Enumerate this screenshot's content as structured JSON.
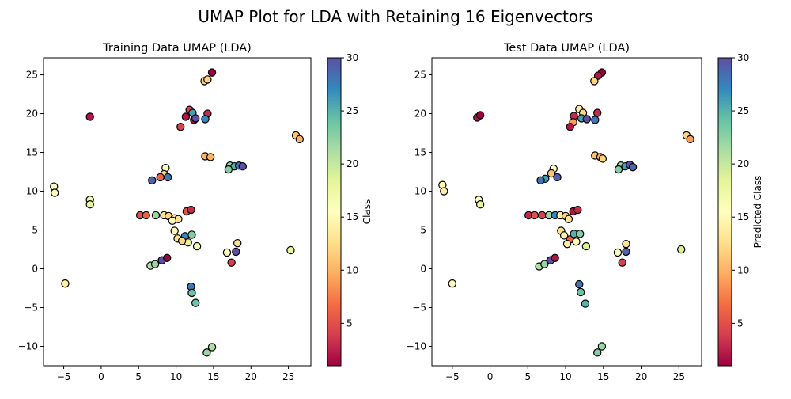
{
  "figure_title": "UMAP Plot for LDA with Retaining 16 Eigenvectors",
  "colormap": [
    "#9e0142",
    "#d53e4f",
    "#f46d43",
    "#fdae61",
    "#fee08b",
    "#ffffbf",
    "#e6f598",
    "#abdda4",
    "#66c2a5",
    "#3288bd",
    "#5e4fa2"
  ],
  "chart_data": [
    {
      "type": "scatter",
      "title": "Training Data UMAP (LDA)",
      "xlabel": "",
      "ylabel": "",
      "xlim": [
        -7.7,
        28
      ],
      "ylim": [
        -12.5,
        27.2
      ],
      "xticks": [
        -5,
        0,
        5,
        10,
        15,
        20,
        25
      ],
      "yticks": [
        -10,
        -5,
        0,
        5,
        10,
        15,
        20,
        25
      ],
      "colorbar": {
        "label": "Class",
        "range": [
          1,
          30
        ],
        "ticks": [
          5,
          10,
          15,
          20,
          25,
          30
        ]
      },
      "points": [
        {
          "x": 14.8,
          "y": 25.3,
          "c": 1
        },
        {
          "x": 13.8,
          "y": 24.2,
          "c": 12
        },
        {
          "x": 14.2,
          "y": 24.4,
          "c": 12
        },
        {
          "x": -1.5,
          "y": 19.6,
          "c": 2
        },
        {
          "x": 11.8,
          "y": 20.5,
          "c": 4
        },
        {
          "x": 12.2,
          "y": 20.1,
          "c": 26
        },
        {
          "x": 11.3,
          "y": 19.6,
          "c": 2
        },
        {
          "x": 12.4,
          "y": 19.2,
          "c": 2
        },
        {
          "x": 10.6,
          "y": 18.3,
          "c": 4
        },
        {
          "x": 12.6,
          "y": 19.4,
          "c": 30
        },
        {
          "x": 14.2,
          "y": 20.0,
          "c": 3
        },
        {
          "x": 13.9,
          "y": 19.3,
          "c": 27
        },
        {
          "x": 26.0,
          "y": 17.2,
          "c": 11
        },
        {
          "x": 26.5,
          "y": 16.7,
          "c": 10
        },
        {
          "x": 13.9,
          "y": 14.5,
          "c": 10
        },
        {
          "x": 14.6,
          "y": 14.4,
          "c": 10
        },
        {
          "x": 17.2,
          "y": 13.3,
          "c": 22
        },
        {
          "x": 17.8,
          "y": 13.2,
          "c": 25
        },
        {
          "x": 18.4,
          "y": 13.3,
          "c": 28
        },
        {
          "x": 18.9,
          "y": 13.2,
          "c": 30
        },
        {
          "x": 17.0,
          "y": 12.8,
          "c": 23
        },
        {
          "x": 8.6,
          "y": 13.0,
          "c": 16
        },
        {
          "x": 8.4,
          "y": 12.2,
          "c": 12
        },
        {
          "x": 8.9,
          "y": 11.8,
          "c": 28
        },
        {
          "x": 7.9,
          "y": 11.8,
          "c": 6
        },
        {
          "x": 6.8,
          "y": 11.4,
          "c": 29
        },
        {
          "x": -6.3,
          "y": 10.6,
          "c": 16
        },
        {
          "x": -6.2,
          "y": 9.8,
          "c": 15
        },
        {
          "x": -1.5,
          "y": 8.9,
          "c": 17
        },
        {
          "x": -1.5,
          "y": 8.3,
          "c": 18
        },
        {
          "x": 5.2,
          "y": 6.9,
          "c": 5
        },
        {
          "x": 6.0,
          "y": 6.9,
          "c": 6
        },
        {
          "x": 7.3,
          "y": 6.9,
          "c": 22
        },
        {
          "x": 8.4,
          "y": 6.9,
          "c": 13
        },
        {
          "x": 9.0,
          "y": 6.8,
          "c": 12
        },
        {
          "x": 9.8,
          "y": 6.5,
          "c": 13
        },
        {
          "x": 10.3,
          "y": 6.4,
          "c": 13
        },
        {
          "x": 9.5,
          "y": 6.2,
          "c": 15
        },
        {
          "x": 11.4,
          "y": 7.4,
          "c": 5
        },
        {
          "x": 12.0,
          "y": 7.6,
          "c": 3
        },
        {
          "x": 9.8,
          "y": 4.9,
          "c": 15
        },
        {
          "x": 10.2,
          "y": 3.9,
          "c": 13
        },
        {
          "x": 11.2,
          "y": 4.2,
          "c": 27
        },
        {
          "x": 12.1,
          "y": 4.4,
          "c": 23
        },
        {
          "x": 11.6,
          "y": 3.4,
          "c": 18
        },
        {
          "x": 12.8,
          "y": 2.9,
          "c": 17
        },
        {
          "x": 10.8,
          "y": 3.6,
          "c": 12
        },
        {
          "x": 18.2,
          "y": 3.3,
          "c": 13
        },
        {
          "x": 16.8,
          "y": 2.1,
          "c": 16
        },
        {
          "x": 18.0,
          "y": 2.2,
          "c": 30
        },
        {
          "x": 25.3,
          "y": 2.4,
          "c": 18
        },
        {
          "x": 17.4,
          "y": 0.8,
          "c": 4
        },
        {
          "x": 6.6,
          "y": 0.4,
          "c": 21
        },
        {
          "x": 7.2,
          "y": 0.6,
          "c": 22
        },
        {
          "x": 8.1,
          "y": 1.1,
          "c": 30
        },
        {
          "x": 8.8,
          "y": 1.4,
          "c": 1
        },
        {
          "x": -4.8,
          "y": -1.9,
          "c": 14
        },
        {
          "x": 12.0,
          "y": -2.3,
          "c": 28
        },
        {
          "x": 12.1,
          "y": -3.1,
          "c": 24
        },
        {
          "x": 12.6,
          "y": -4.4,
          "c": 24
        },
        {
          "x": 14.8,
          "y": -10.1,
          "c": 21
        },
        {
          "x": 14.1,
          "y": -10.8,
          "c": 22
        }
      ]
    },
    {
      "type": "scatter",
      "title": "Test Data UMAP (LDA)",
      "xlabel": "",
      "ylabel": "",
      "xlim": [
        -7.7,
        28
      ],
      "ylim": [
        -12.5,
        27.2
      ],
      "xticks": [
        -5,
        0,
        5,
        10,
        15,
        20,
        25
      ],
      "yticks": [
        -10,
        -5,
        0,
        5,
        10,
        15,
        20,
        25
      ],
      "colorbar": {
        "label": "Predicted Class",
        "range": [
          1,
          30
        ],
        "ticks": [
          5,
          10,
          15,
          20,
          25,
          30
        ]
      },
      "points": [
        {
          "x": 14.8,
          "y": 25.3,
          "c": 1
        },
        {
          "x": 14.3,
          "y": 24.9,
          "c": 2
        },
        {
          "x": 13.8,
          "y": 24.2,
          "c": 12
        },
        {
          "x": -1.7,
          "y": 19.5,
          "c": 2
        },
        {
          "x": -1.3,
          "y": 19.8,
          "c": 1
        },
        {
          "x": 11.8,
          "y": 20.6,
          "c": 14
        },
        {
          "x": 12.3,
          "y": 20.1,
          "c": 12
        },
        {
          "x": 11.1,
          "y": 19.7,
          "c": 3
        },
        {
          "x": 12.1,
          "y": 19.4,
          "c": 26
        },
        {
          "x": 11.0,
          "y": 18.9,
          "c": 9
        },
        {
          "x": 10.6,
          "y": 18.3,
          "c": 2
        },
        {
          "x": 13.9,
          "y": 19.2,
          "c": 28
        },
        {
          "x": 14.2,
          "y": 20.1,
          "c": 3
        },
        {
          "x": 12.8,
          "y": 19.3,
          "c": 30
        },
        {
          "x": 26.0,
          "y": 17.2,
          "c": 12
        },
        {
          "x": 26.5,
          "y": 16.7,
          "c": 9
        },
        {
          "x": 13.9,
          "y": 14.6,
          "c": 11
        },
        {
          "x": 14.6,
          "y": 14.4,
          "c": 10
        },
        {
          "x": 14.9,
          "y": 14.2,
          "c": 12
        },
        {
          "x": 17.3,
          "y": 13.3,
          "c": 22
        },
        {
          "x": 17.9,
          "y": 13.2,
          "c": 26
        },
        {
          "x": 18.5,
          "y": 13.4,
          "c": 30
        },
        {
          "x": 18.9,
          "y": 13.1,
          "c": 29
        },
        {
          "x": 17.0,
          "y": 12.8,
          "c": 23
        },
        {
          "x": 8.4,
          "y": 12.9,
          "c": 16
        },
        {
          "x": 8.1,
          "y": 12.3,
          "c": 11
        },
        {
          "x": 8.9,
          "y": 11.8,
          "c": 29
        },
        {
          "x": 7.3,
          "y": 11.6,
          "c": 26
        },
        {
          "x": 6.7,
          "y": 11.4,
          "c": 28
        },
        {
          "x": -6.3,
          "y": 10.8,
          "c": 15
        },
        {
          "x": -6.1,
          "y": 10.0,
          "c": 14
        },
        {
          "x": -1.5,
          "y": 8.9,
          "c": 16
        },
        {
          "x": -1.3,
          "y": 8.3,
          "c": 18
        },
        {
          "x": 5.1,
          "y": 6.9,
          "c": 3
        },
        {
          "x": 5.9,
          "y": 6.9,
          "c": 5
        },
        {
          "x": 6.9,
          "y": 6.9,
          "c": 4
        },
        {
          "x": 7.8,
          "y": 6.9,
          "c": 22
        },
        {
          "x": 8.6,
          "y": 6.9,
          "c": 27
        },
        {
          "x": 9.3,
          "y": 6.9,
          "c": 14
        },
        {
          "x": 10.0,
          "y": 6.8,
          "c": 12
        },
        {
          "x": 10.4,
          "y": 6.4,
          "c": 13
        },
        {
          "x": 11.0,
          "y": 7.4,
          "c": 2
        },
        {
          "x": 11.6,
          "y": 7.6,
          "c": 3
        },
        {
          "x": 9.4,
          "y": 4.9,
          "c": 13
        },
        {
          "x": 9.8,
          "y": 4.3,
          "c": 14
        },
        {
          "x": 10.6,
          "y": 3.8,
          "c": 6
        },
        {
          "x": 11.1,
          "y": 4.5,
          "c": 25
        },
        {
          "x": 11.9,
          "y": 4.5,
          "c": 23
        },
        {
          "x": 11.4,
          "y": 3.5,
          "c": 16
        },
        {
          "x": 12.7,
          "y": 2.9,
          "c": 19
        },
        {
          "x": 10.2,
          "y": 3.2,
          "c": 14
        },
        {
          "x": 18.0,
          "y": 3.2,
          "c": 13
        },
        {
          "x": 16.9,
          "y": 2.1,
          "c": 16
        },
        {
          "x": 18.0,
          "y": 2.2,
          "c": 29
        },
        {
          "x": 25.3,
          "y": 2.5,
          "c": 19
        },
        {
          "x": 17.5,
          "y": 0.8,
          "c": 4
        },
        {
          "x": 6.5,
          "y": 0.3,
          "c": 21
        },
        {
          "x": 7.2,
          "y": 0.6,
          "c": 22
        },
        {
          "x": 8.0,
          "y": 1.1,
          "c": 30
        },
        {
          "x": 8.6,
          "y": 1.4,
          "c": 2
        },
        {
          "x": -5.0,
          "y": -1.9,
          "c": 15
        },
        {
          "x": 11.8,
          "y": -2.0,
          "c": 28
        },
        {
          "x": 12.0,
          "y": -3.0,
          "c": 24
        },
        {
          "x": 12.6,
          "y": -4.5,
          "c": 25
        },
        {
          "x": 14.8,
          "y": -10.0,
          "c": 22
        },
        {
          "x": 14.2,
          "y": -10.8,
          "c": 23
        }
      ]
    }
  ]
}
